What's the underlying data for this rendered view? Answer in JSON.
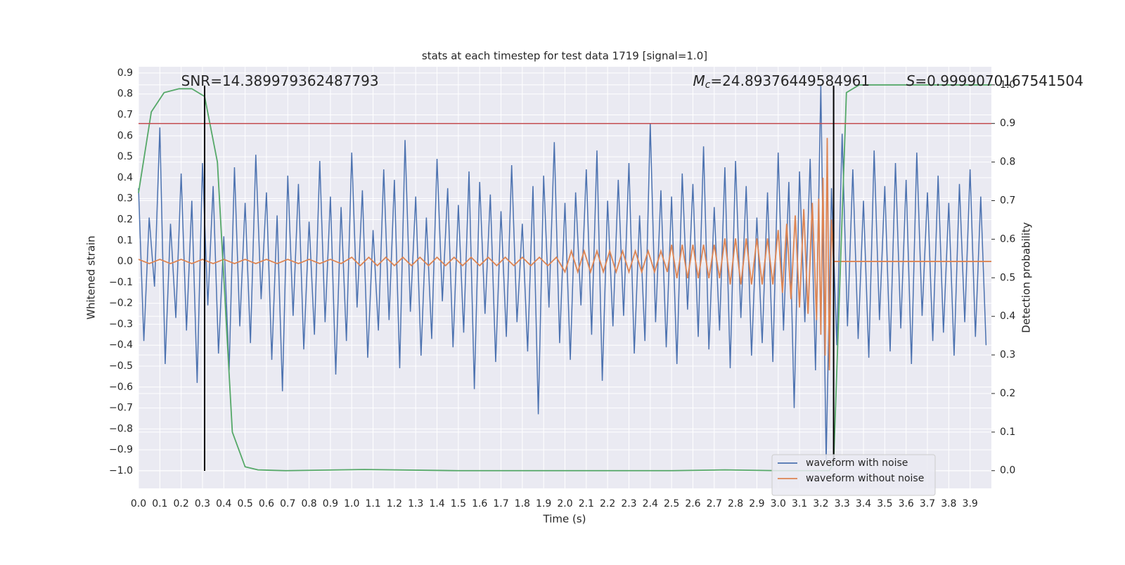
{
  "chart_data": {
    "type": "line",
    "title": "stats at each timestep for test data 1719 [signal=1.0]",
    "xlabel": "Time (s)",
    "ylabel": "Whitened strain",
    "y2label": "Detection probability",
    "xlim": [
      0,
      4
    ],
    "ylim": [
      -1.084,
      0.93
    ],
    "y2lim": [
      -0.046,
      1.047
    ],
    "grid": true,
    "legend": "lower right",
    "xticks": [
      {
        "value": 0,
        "label": "0.0"
      },
      0.1,
      0.2,
      0.3,
      0.4,
      0.5,
      0.6,
      0.7,
      0.8,
      0.9,
      {
        "value": 1,
        "label": "1.0"
      },
      1.1,
      1.2,
      1.3,
      1.4,
      1.5,
      1.6,
      1.7,
      1.8,
      1.9,
      {
        "value": 2,
        "label": "2.0"
      },
      2.1,
      2.2,
      2.3,
      2.4,
      2.5,
      2.6,
      2.7,
      2.8,
      2.9,
      {
        "value": 3,
        "label": "3.0"
      },
      3.1,
      3.2,
      3.3,
      3.4,
      3.5,
      3.6,
      3.7,
      3.8,
      3.9
    ],
    "yticks": [
      {
        "value": -1,
        "label": "−1.0"
      },
      {
        "value": -0.9,
        "label": "−0.9"
      },
      {
        "value": -0.8,
        "label": "−0.8"
      },
      {
        "value": -0.7,
        "label": "−0.7"
      },
      {
        "value": -0.6,
        "label": "−0.6"
      },
      {
        "value": -0.5,
        "label": "−0.5"
      },
      {
        "value": -0.4,
        "label": "−0.4"
      },
      {
        "value": -0.3,
        "label": "−0.3"
      },
      {
        "value": -0.2,
        "label": "−0.2"
      },
      {
        "value": -0.1,
        "label": "−0.1"
      },
      {
        "value": 0,
        "label": "0.0"
      },
      0.1,
      0.2,
      0.3,
      0.4,
      0.5,
      0.6,
      0.7,
      0.8,
      0.9
    ],
    "y2ticks": [
      {
        "value": 0,
        "label": "0.0"
      },
      0.1,
      0.2,
      0.3,
      0.4,
      0.5,
      0.6,
      0.7,
      0.8,
      0.9,
      {
        "value": 1,
        "label": "1.0"
      }
    ],
    "series": [
      {
        "name": "waveform with noise",
        "color": "#4c72b0",
        "x": [
          0,
          0.025,
          0.05,
          0.075,
          0.1,
          0.125,
          0.15,
          0.175,
          0.2,
          0.225,
          0.25,
          0.275,
          0.3,
          0.325,
          0.35,
          0.375,
          0.4,
          0.425,
          0.45,
          0.475,
          0.5,
          0.525,
          0.55,
          0.575,
          0.6,
          0.625,
          0.65,
          0.675,
          0.7,
          0.725,
          0.75,
          0.775,
          0.8,
          0.825,
          0.85,
          0.875,
          0.9,
          0.925,
          0.95,
          0.975,
          1,
          1.025,
          1.05,
          1.075,
          1.1,
          1.125,
          1.15,
          1.175,
          1.2,
          1.225,
          1.25,
          1.275,
          1.3,
          1.325,
          1.35,
          1.375,
          1.4,
          1.425,
          1.45,
          1.475,
          1.5,
          1.525,
          1.55,
          1.575,
          1.6,
          1.625,
          1.65,
          1.675,
          1.7,
          1.725,
          1.75,
          1.775,
          1.8,
          1.825,
          1.85,
          1.875,
          1.9,
          1.925,
          1.95,
          1.975,
          2,
          2.025,
          2.05,
          2.075,
          2.1,
          2.125,
          2.15,
          2.175,
          2.2,
          2.225,
          2.25,
          2.275,
          2.3,
          2.325,
          2.35,
          2.375,
          2.4,
          2.425,
          2.45,
          2.475,
          2.5,
          2.525,
          2.55,
          2.575,
          2.6,
          2.625,
          2.65,
          2.675,
          2.7,
          2.725,
          2.75,
          2.775,
          2.8,
          2.825,
          2.85,
          2.875,
          2.9,
          2.925,
          2.95,
          2.975,
          3,
          3.025,
          3.05,
          3.075,
          3.1,
          3.125,
          3.15,
          3.175,
          3.2,
          3.225,
          3.25,
          3.275,
          3.3,
          3.325,
          3.35,
          3.375,
          3.4,
          3.425,
          3.45,
          3.475,
          3.5,
          3.525,
          3.55,
          3.575,
          3.6,
          3.625,
          3.65,
          3.675,
          3.7,
          3.725,
          3.75,
          3.775,
          3.8,
          3.825,
          3.85,
          3.875,
          3.9,
          3.925,
          3.95,
          3.975
        ],
        "values": [
          0.35,
          -0.38,
          0.21,
          -0.12,
          0.64,
          -0.49,
          0.18,
          -0.27,
          0.42,
          -0.33,
          0.29,
          -0.58,
          0.47,
          -0.21,
          0.36,
          -0.44,
          0.12,
          -0.52,
          0.45,
          -0.31,
          0.28,
          -0.39,
          0.51,
          -0.18,
          0.33,
          -0.47,
          0.22,
          -0.62,
          0.41,
          -0.26,
          0.37,
          -0.42,
          0.19,
          -0.35,
          0.48,
          -0.29,
          0.31,
          -0.54,
          0.26,
          -0.38,
          0.52,
          -0.22,
          0.34,
          -0.46,
          0.15,
          -0.33,
          0.44,
          -0.28,
          0.39,
          -0.51,
          0.58,
          -0.24,
          0.31,
          -0.45,
          0.21,
          -0.37,
          0.49,
          -0.19,
          0.35,
          -0.41,
          0.27,
          -0.34,
          0.43,
          -0.61,
          0.38,
          -0.25,
          0.32,
          -0.48,
          0.24,
          -0.36,
          0.46,
          -0.29,
          0.18,
          -0.43,
          0.36,
          -0.73,
          0.41,
          -0.22,
          0.57,
          -0.39,
          0.28,
          -0.47,
          0.33,
          -0.21,
          0.44,
          -0.35,
          0.53,
          -0.57,
          0.29,
          -0.31,
          0.39,
          -0.26,
          0.47,
          -0.44,
          0.22,
          -0.38,
          0.66,
          -0.29,
          0.34,
          -0.41,
          0.31,
          -0.49,
          0.42,
          -0.23,
          0.37,
          -0.36,
          0.55,
          -0.42,
          0.26,
          -0.33,
          0.45,
          -0.51,
          0.48,
          -0.27,
          0.36,
          -0.45,
          0.21,
          -0.39,
          0.33,
          -0.48,
          0.52,
          -0.33,
          0.38,
          -0.7,
          0.43,
          -0.29,
          0.49,
          -0.52,
          0.84,
          -0.95,
          0.35,
          -0.4,
          0.61,
          -0.31,
          0.44,
          -0.37,
          0.29,
          -0.46,
          0.53,
          -0.28,
          0.36,
          -0.43,
          0.47,
          -0.32,
          0.39,
          -0.49,
          0.52,
          -0.26,
          0.33,
          -0.38,
          0.41,
          -0.34,
          0.28,
          -0.45,
          0.37,
          -0.29,
          0.44,
          -0.36,
          0.31,
          -0.4
        ]
      },
      {
        "name": "waveform without noise",
        "color": "#dd8452",
        "x": [
          0,
          0.05,
          0.1,
          0.15,
          0.2,
          0.25,
          0.3,
          0.35,
          0.4,
          0.45,
          0.5,
          0.55,
          0.6,
          0.65,
          0.7,
          0.75,
          0.8,
          0.85,
          0.9,
          0.95,
          1,
          1.04,
          1.08,
          1.12,
          1.16,
          1.2,
          1.24,
          1.28,
          1.32,
          1.36,
          1.4,
          1.44,
          1.48,
          1.52,
          1.56,
          1.6,
          1.64,
          1.68,
          1.72,
          1.76,
          1.8,
          1.84,
          1.88,
          1.92,
          1.96,
          2,
          2.03,
          2.06,
          2.09,
          2.12,
          2.15,
          2.18,
          2.21,
          2.24,
          2.27,
          2.3,
          2.33,
          2.36,
          2.39,
          2.42,
          2.45,
          2.48,
          2.5,
          2.525,
          2.55,
          2.575,
          2.6,
          2.625,
          2.65,
          2.675,
          2.7,
          2.725,
          2.75,
          2.775,
          2.8,
          2.825,
          2.85,
          2.875,
          2.9,
          2.925,
          2.95,
          2.975,
          3,
          3.02,
          3.04,
          3.06,
          3.08,
          3.1,
          3.12,
          3.14,
          3.16,
          3.18,
          3.19,
          3.2,
          3.21,
          3.22,
          3.23,
          3.24,
          3.25,
          3.26,
          4
        ],
        "values": [
          0.01,
          -0.01,
          0.01,
          -0.01,
          0.01,
          -0.01,
          0.01,
          -0.01,
          0.01,
          -0.01,
          0.01,
          -0.01,
          0.01,
          -0.01,
          0.01,
          -0.01,
          0.01,
          -0.01,
          0.01,
          -0.01,
          0.02,
          -0.02,
          0.02,
          -0.02,
          0.02,
          -0.02,
          0.02,
          -0.02,
          0.02,
          -0.02,
          0.02,
          -0.02,
          0.02,
          -0.02,
          0.02,
          -0.02,
          0.02,
          -0.02,
          0.02,
          -0.02,
          0.02,
          -0.02,
          0.02,
          -0.02,
          0.02,
          -0.05,
          0.05,
          -0.05,
          0.05,
          -0.05,
          0.05,
          -0.05,
          0.05,
          -0.05,
          0.05,
          -0.05,
          0.05,
          -0.05,
          0.05,
          -0.05,
          0.05,
          -0.05,
          0.08,
          -0.08,
          0.08,
          -0.08,
          0.08,
          -0.08,
          0.08,
          -0.08,
          0.08,
          -0.08,
          0.11,
          -0.11,
          0.11,
          -0.11,
          0.11,
          -0.11,
          0.11,
          -0.11,
          0.11,
          -0.11,
          0.15,
          -0.15,
          0.18,
          -0.18,
          0.22,
          -0.22,
          0.25,
          -0.25,
          0.28,
          -0.28,
          0.3,
          -0.35,
          0.4,
          -0.45,
          0.59,
          -0.52,
          0.2,
          0,
          0
        ]
      },
      {
        "color": "#55a868",
        "axis": "y2",
        "x": [
          0,
          0.06,
          0.12,
          0.19,
          0.25,
          0.31,
          0.37,
          0.44,
          0.5,
          0.56,
          0.69,
          1.06,
          1.5,
          2.5,
          2.75,
          3.0,
          3.2,
          3.24,
          3.26,
          3.32,
          3.38,
          4
        ],
        "values": [
          0.72,
          0.93,
          0.98,
          0.99,
          0.99,
          0.97,
          0.8,
          0.1,
          0.01,
          0.002,
          0,
          0.003,
          0,
          0,
          0.002,
          0,
          0,
          0,
          0.02,
          0.98,
          1,
          1
        ]
      }
    ],
    "threshold": {
      "value": 0.9,
      "axis": "y2",
      "color": "#c44e52"
    },
    "vlines": [
      {
        "x": 0.31,
        "y": [
          -1.0,
          0.84
        ],
        "color": "#000000"
      },
      {
        "x": 3.26,
        "y": [
          -0.95,
          0.84
        ],
        "color": "#000000"
      }
    ],
    "annotations": [
      {
        "x": 0.2,
        "y": 0.86,
        "text": "SNR=14.389979362487793"
      },
      {
        "x": 2.6,
        "y": 0.86,
        "symbol": "M",
        "sub": "c",
        "text": "=24.89376449584961"
      },
      {
        "x": 3.6,
        "y": 0.86,
        "symbol": "S",
        "text": "=0.9999070167541504"
      }
    ]
  }
}
